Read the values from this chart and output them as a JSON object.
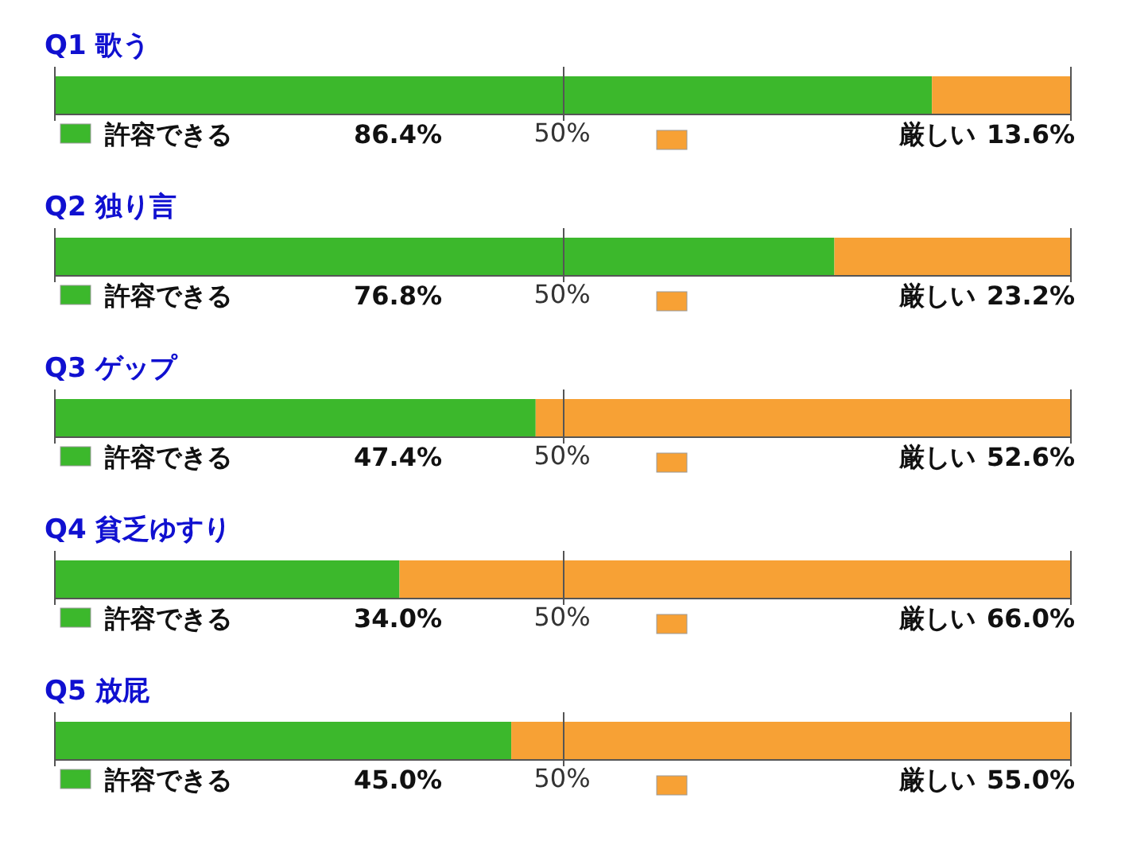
{
  "chart_data": [
    {
      "type": "bar",
      "orientation": "horizontal",
      "stacked": true,
      "title": "Q1 歌う",
      "categories": [
        null
      ],
      "xlim": [
        0,
        100
      ],
      "ref_lines": [
        {
          "axis": "x",
          "value": 50,
          "label": "50%"
        }
      ],
      "legend": "bottom",
      "series": [
        {
          "name": "許容できる",
          "color": "#3cb82c",
          "values": [
            86.4
          ],
          "value_labels": [
            "86.4%"
          ]
        },
        {
          "name": "厳しい",
          "color": "#f7a135",
          "values": [
            13.6
          ],
          "value_labels": [
            "13.6%"
          ]
        }
      ]
    },
    {
      "type": "bar",
      "orientation": "horizontal",
      "stacked": true,
      "title": "Q2 独り言",
      "categories": [
        null
      ],
      "xlim": [
        0,
        100
      ],
      "ref_lines": [
        {
          "axis": "x",
          "value": 50,
          "label": "50%"
        }
      ],
      "legend": "bottom",
      "series": [
        {
          "name": "許容できる",
          "color": "#3cb82c",
          "values": [
            76.8
          ],
          "value_labels": [
            "76.8%"
          ]
        },
        {
          "name": "厳しい",
          "color": "#f7a135",
          "values": [
            23.2
          ],
          "value_labels": [
            "23.2%"
          ]
        }
      ]
    },
    {
      "type": "bar",
      "orientation": "horizontal",
      "stacked": true,
      "title": "Q3 ゲップ",
      "categories": [
        null
      ],
      "xlim": [
        0,
        100
      ],
      "ref_lines": [
        {
          "axis": "x",
          "value": 50,
          "label": "50%"
        }
      ],
      "legend": "bottom",
      "series": [
        {
          "name": "許容できる",
          "color": "#3cb82c",
          "values": [
            47.4
          ],
          "value_labels": [
            "47.4%"
          ]
        },
        {
          "name": "厳しい",
          "color": "#f7a135",
          "values": [
            52.6
          ],
          "value_labels": [
            "52.6%"
          ]
        }
      ]
    },
    {
      "type": "bar",
      "orientation": "horizontal",
      "stacked": true,
      "title": "Q4 貧乏ゆすり",
      "categories": [
        null
      ],
      "xlim": [
        0,
        100
      ],
      "ref_lines": [
        {
          "axis": "x",
          "value": 50,
          "label": "50%"
        }
      ],
      "legend": "bottom",
      "series": [
        {
          "name": "許容できる",
          "color": "#3cb82c",
          "values": [
            34.0
          ],
          "value_labels": [
            "34.0%"
          ]
        },
        {
          "name": "厳しい",
          "color": "#f7a135",
          "values": [
            66.0
          ],
          "value_labels": [
            "66.0%"
          ]
        }
      ]
    },
    {
      "type": "bar",
      "orientation": "horizontal",
      "stacked": true,
      "title": "Q5 放屁",
      "categories": [
        null
      ],
      "xlim": [
        0,
        100
      ],
      "ref_lines": [
        {
          "axis": "x",
          "value": 50,
          "label": "50%"
        }
      ],
      "legend": "bottom",
      "series": [
        {
          "name": "許容できる",
          "color": "#3cb82c",
          "values": [
            45.0
          ],
          "value_labels": [
            "45.0%"
          ]
        },
        {
          "name": "厳しい",
          "color": "#f7a135",
          "values": [
            55.0
          ],
          "value_labels": [
            "55.0%"
          ]
        }
      ]
    }
  ]
}
